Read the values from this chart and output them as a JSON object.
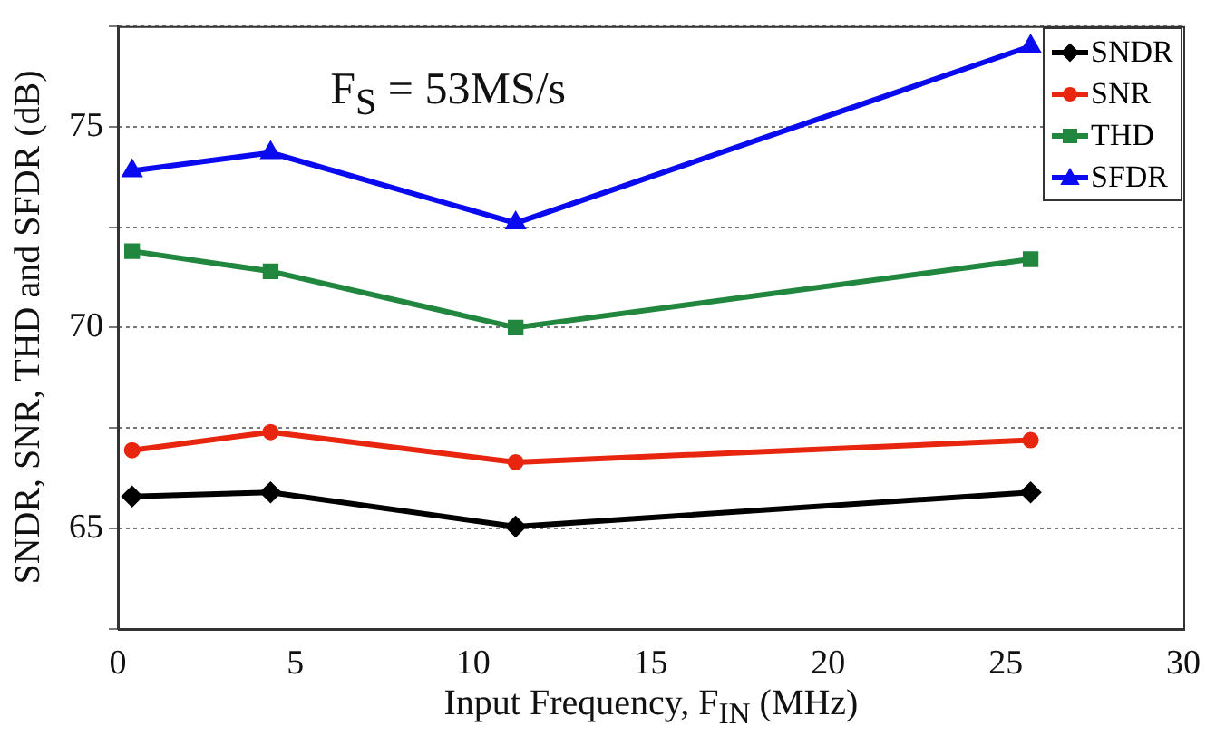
{
  "chart_data": {
    "type": "line",
    "xlabel": "Input Frequency, F$_{IN}$ (MHz)",
    "ylabel": "SNDR, SNR, THD and SFDR (dB)",
    "annotations": [
      "F$_{S}$ = 53MS/s"
    ],
    "x": [
      0.4,
      4.3,
      11.2,
      25.7
    ],
    "series": [
      {
        "name": "SNDR",
        "color": "#000000",
        "marker": "diamond",
        "values": [
          65.8,
          65.9,
          65.05,
          65.9
        ]
      },
      {
        "name": "SNR",
        "color": "#e8260f",
        "marker": "circle",
        "values": [
          66.95,
          67.4,
          66.65,
          67.2
        ]
      },
      {
        "name": "THD",
        "color": "#21873f",
        "marker": "square",
        "values": [
          71.9,
          71.4,
          70.0,
          71.7
        ]
      },
      {
        "name": "SFDR",
        "color": "#0a0af0",
        "marker": "triangle",
        "values": [
          73.9,
          74.35,
          72.6,
          77.0
        ]
      }
    ],
    "xlim": [
      0,
      30
    ],
    "xticks": [
      0,
      5,
      10,
      15,
      20,
      25,
      30
    ],
    "ylim": [
      62.5,
      77.5
    ],
    "yticks": [
      {
        "value": 62.5,
        "label": null
      },
      65,
      {
        "value": 67.5,
        "label": null
      },
      70,
      {
        "value": 72.5,
        "label": null
      },
      75,
      {
        "value": 77.5,
        "label": null
      }
    ],
    "grid": "y",
    "legend": "top right"
  }
}
